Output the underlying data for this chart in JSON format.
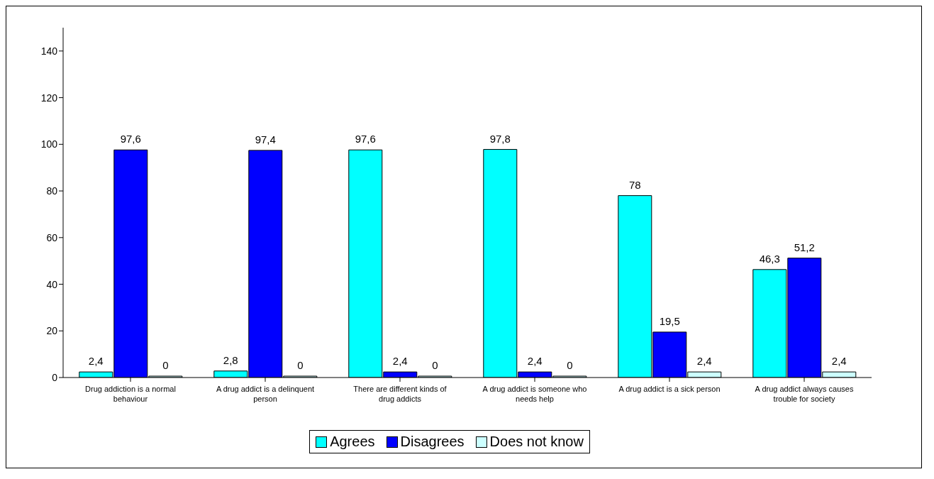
{
  "chart_data": {
    "type": "bar",
    "categories": [
      "Drug addiction is a normal behaviour",
      "A drug addict is a delinquent person",
      "There are different kinds of drug addicts",
      "A drug addict is someone who needs help",
      "A drug addict is a sick person",
      "A drug addict always causes trouble for society"
    ],
    "series": [
      {
        "name": "Agrees",
        "color": "#00ffff",
        "values": [
          2.4,
          2.8,
          97.6,
          97.8,
          78,
          46.3
        ],
        "value_labels": [
          "2,4",
          "2,8",
          "97,6",
          "97,8",
          "78",
          "46,3"
        ]
      },
      {
        "name": "Disagrees",
        "color": "#0000ff",
        "values": [
          97.6,
          97.4,
          2.4,
          2.4,
          19.5,
          51.2
        ],
        "value_labels": [
          "97,6",
          "97,4",
          "2,4",
          "2,4",
          "19,5",
          "51,2"
        ]
      },
      {
        "name": "Does not know",
        "color": "#ccffff",
        "values": [
          0,
          0,
          0,
          0,
          2.4,
          2.4
        ],
        "value_labels": [
          "0",
          "0",
          "0",
          "0",
          "2,4",
          "2,4"
        ]
      }
    ],
    "ylim": [
      0,
      150
    ],
    "yticks": [
      0,
      20,
      40,
      60,
      80,
      100,
      120,
      140
    ],
    "grid": false,
    "legend": "bottom"
  }
}
